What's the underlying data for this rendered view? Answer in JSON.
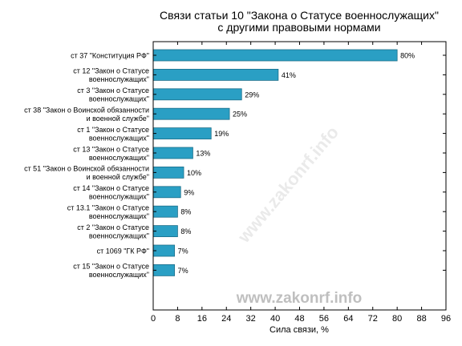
{
  "chart_data": {
    "type": "bar",
    "orientation": "horizontal",
    "title_lines": [
      "Связи статьи 10 \"Закона о Статусе военнослужащих\"",
      "с другими правовыми нормами"
    ],
    "xlabel": "Сила связи, %",
    "ylabel": "",
    "xlim": [
      0,
      96
    ],
    "xticks": [
      0,
      8,
      16,
      24,
      32,
      40,
      48,
      56,
      64,
      72,
      80,
      88,
      96
    ],
    "categories": [
      [
        "ст 37 \"Конституция РФ\""
      ],
      [
        "ст 12 \"Закон о Статусе",
        "военнослужащих\""
      ],
      [
        "ст 3 \"Закон о Статусе",
        "военнослужащих\""
      ],
      [
        "ст 38 \"Закон о Воинской обязанности",
        "и военной службе\""
      ],
      [
        "ст 1 \"Закон о Статусе",
        "военнослужащих\""
      ],
      [
        "ст 13 \"Закон о Статусе",
        "военнослужащих\""
      ],
      [
        "ст 51 \"Закон о Воинской обязанности",
        "и военной службе\""
      ],
      [
        "ст 14 \"Закон о Статусе",
        "военнослужащих\""
      ],
      [
        "ст 13.1 \"Закон о Статусе",
        "военнослужащих\""
      ],
      [
        "ст 2 \"Закон о Статусе",
        "военнослужащих\""
      ],
      [
        "ст 1069 \"ГК РФ\""
      ],
      [
        "ст 15 \"Закон о Статусе",
        "военнослужащих\""
      ]
    ],
    "values": [
      80,
      41,
      29,
      25,
      19,
      13,
      10,
      9,
      8,
      8,
      7,
      7
    ],
    "value_labels": [
      "80%",
      "41%",
      "29%",
      "25%",
      "19%",
      "13%",
      "10%",
      "9%",
      "8%",
      "8%",
      "7%",
      "7%"
    ],
    "bar_color": "#2a9fc4",
    "bar_edge_color": "#1d6f8a",
    "grid": false
  },
  "watermark": "www.zakonrf.info",
  "watermark_diagonal": "www.zakonrf.info"
}
